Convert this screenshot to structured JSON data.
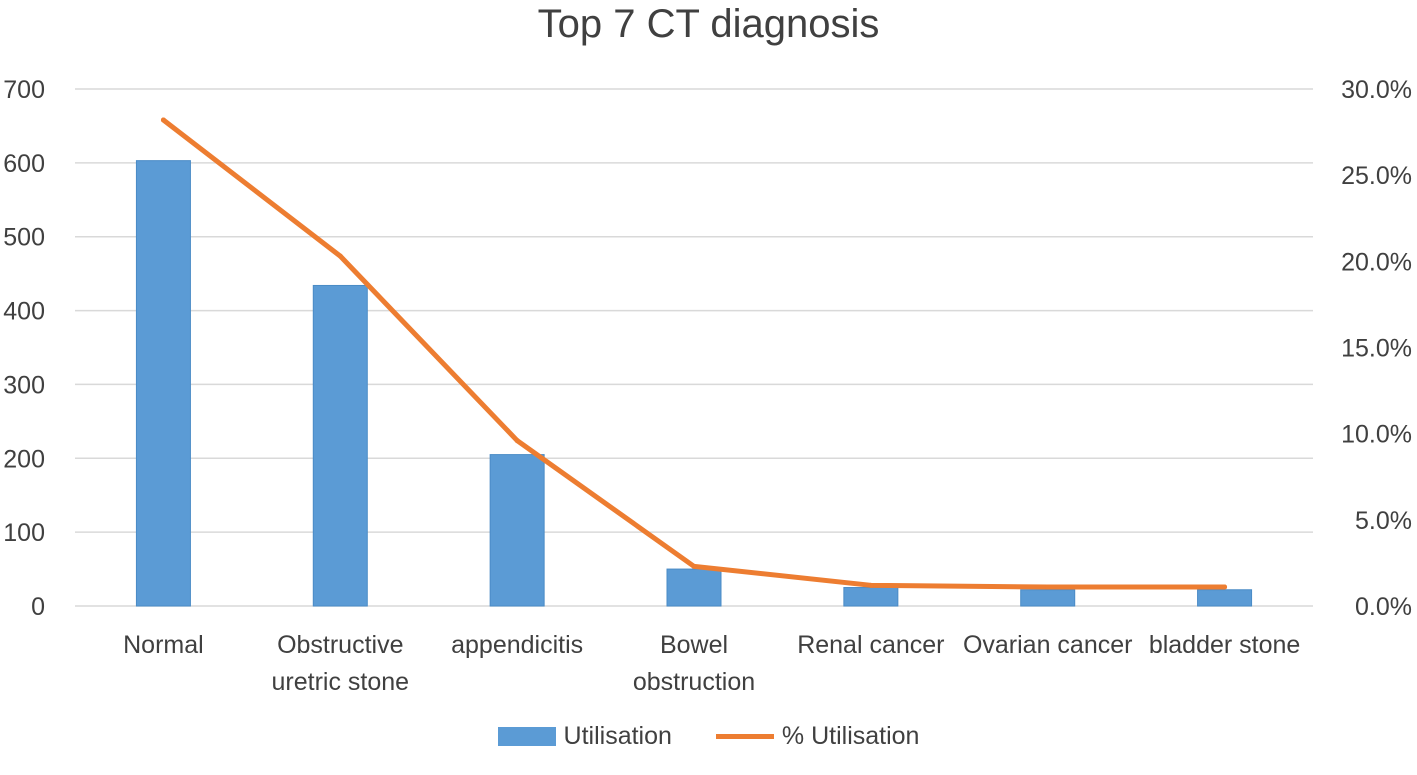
{
  "chart_data": {
    "type": "bar",
    "title": "Top 7 CT diagnosis",
    "categories": [
      [
        "Normal"
      ],
      [
        "Obstructive",
        "uretric stone"
      ],
      [
        "appendicitis"
      ],
      [
        "Bowel",
        "obstruction"
      ],
      [
        "Renal cancer"
      ],
      [
        "Ovarian cancer"
      ],
      [
        "bladder stone"
      ]
    ],
    "series": [
      {
        "name": "Utilisation",
        "type": "bar",
        "axis": "left",
        "color": "#5b9bd5",
        "values": [
          603,
          434,
          205,
          50,
          25,
          22,
          22
        ]
      },
      {
        "name": "% Utilisation",
        "type": "line",
        "axis": "right",
        "color": "#ed7d31",
        "values": [
          28.2,
          20.3,
          9.6,
          2.3,
          1.2,
          1.1,
          1.1
        ]
      }
    ],
    "y_left": {
      "min": 0,
      "max": 700,
      "step": 100,
      "ticks": [
        "0",
        "100",
        "200",
        "300",
        "400",
        "500",
        "600",
        "700"
      ]
    },
    "y_right": {
      "min": 0,
      "max": 30,
      "step": 5,
      "ticks": [
        "0.0%",
        "5.0%",
        "10.0%",
        "15.0%",
        "20.0%",
        "25.0%",
        "30.0%"
      ]
    },
    "grid": true,
    "legend_position": "bottom"
  }
}
